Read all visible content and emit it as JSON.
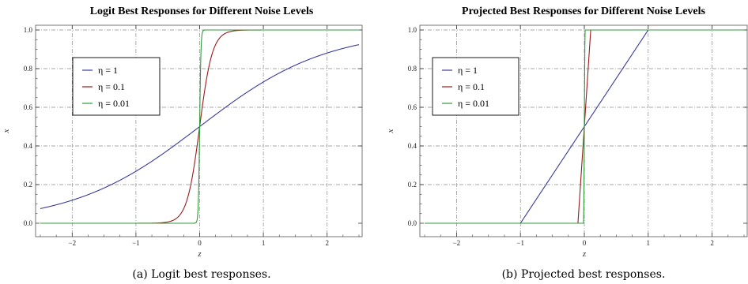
{
  "chart_data": [
    {
      "type": "line",
      "title": "Logit Best Responses for Different Noise Levels",
      "xlabel": "z",
      "ylabel": "x",
      "caption": "(a) Logit best responses.",
      "xlim": [
        -2.5,
        2.5
      ],
      "ylim": [
        0,
        1
      ],
      "xticks": [
        -2,
        -1,
        0,
        1,
        2
      ],
      "yticks": [
        0.0,
        0.2,
        0.4,
        0.6,
        0.8,
        1.0
      ],
      "ytick_labels": [
        "0.0",
        "0.2",
        "0.4",
        "0.6",
        "0.8",
        "1.0"
      ],
      "grid": "dot-dashed",
      "legend_position": "upper-left",
      "series": [
        {
          "name": "η = 1",
          "color": "#3a3a9c",
          "function": "logit",
          "eta": 1
        },
        {
          "name": "η = 0.1",
          "color": "#9c1a1a",
          "function": "logit",
          "eta": 0.1
        },
        {
          "name": "η = 0.01",
          "color": "#2e9a3e",
          "function": "logit",
          "eta": 0.01
        }
      ]
    },
    {
      "type": "line",
      "title": "Projected Best Responses for Different Noise Levels",
      "xlabel": "z",
      "ylabel": "x",
      "caption": "(b) Projected best responses.",
      "xlim": [
        -2.5,
        2.5
      ],
      "ylim": [
        0,
        1
      ],
      "xticks": [
        -2,
        -1,
        0,
        1,
        2
      ],
      "yticks": [
        0.0,
        0.2,
        0.4,
        0.6,
        0.8,
        1.0
      ],
      "ytick_labels": [
        "0.0",
        "0.2",
        "0.4",
        "0.6",
        "0.8",
        "1.0"
      ],
      "grid": "dot-dashed",
      "legend_position": "upper-left",
      "series": [
        {
          "name": "η = 1",
          "color": "#3a3a9c",
          "function": "projected",
          "eta": 1
        },
        {
          "name": "η = 0.1",
          "color": "#9c1a1a",
          "function": "projected",
          "eta": 0.1
        },
        {
          "name": "η = 0.01",
          "color": "#2e9a3e",
          "function": "projected",
          "eta": 0.01
        }
      ]
    }
  ]
}
